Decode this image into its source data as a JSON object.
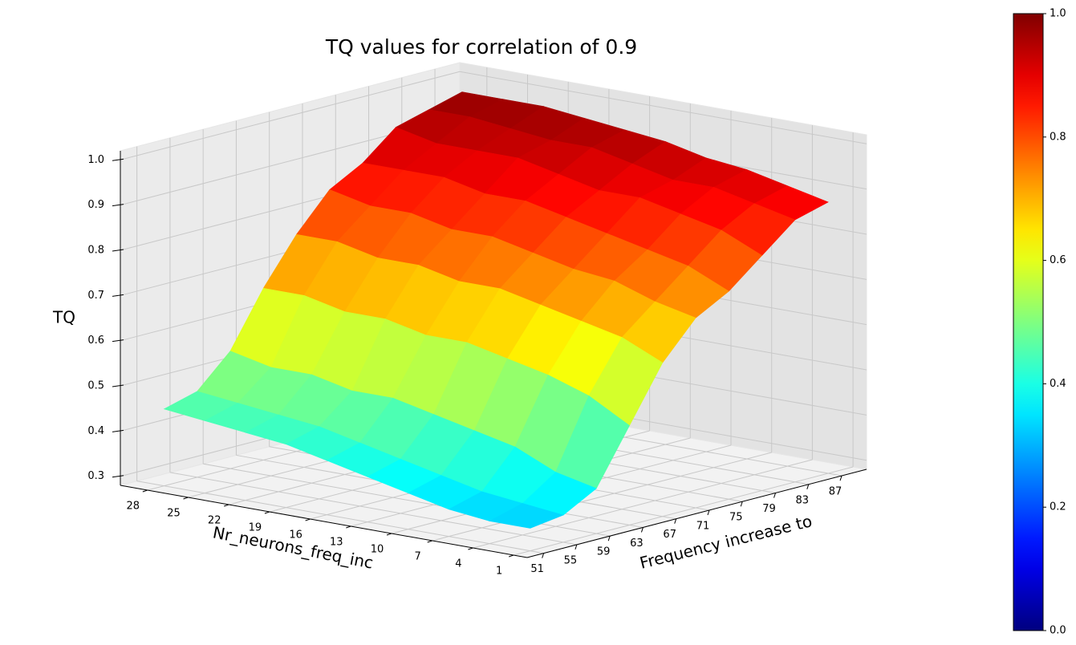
{
  "chart_data": {
    "type": "surface",
    "title": "TQ values for correlation of 0.9",
    "xlabel": "Frequency increase to",
    "ylabel": "Nr_neurons_freq_inc",
    "zlabel": "TQ",
    "x": [
      51,
      55,
      59,
      63,
      67,
      71,
      75,
      79,
      83,
      87
    ],
    "y": [
      1,
      4,
      7,
      10,
      13,
      16,
      19,
      22,
      25,
      28
    ],
    "z": [
      [
        0.33,
        0.34,
        0.38,
        0.5,
        0.62,
        0.7,
        0.74,
        0.8,
        0.86,
        0.88
      ],
      [
        0.33,
        0.35,
        0.4,
        0.55,
        0.66,
        0.72,
        0.78,
        0.84,
        0.88,
        0.9
      ],
      [
        0.34,
        0.36,
        0.44,
        0.58,
        0.68,
        0.75,
        0.8,
        0.86,
        0.9,
        0.92
      ],
      [
        0.36,
        0.38,
        0.46,
        0.6,
        0.7,
        0.76,
        0.82,
        0.88,
        0.9,
        0.93
      ],
      [
        0.38,
        0.4,
        0.48,
        0.62,
        0.72,
        0.78,
        0.84,
        0.88,
        0.92,
        0.95
      ],
      [
        0.4,
        0.42,
        0.5,
        0.62,
        0.72,
        0.8,
        0.86,
        0.9,
        0.94,
        0.96
      ],
      [
        0.42,
        0.44,
        0.5,
        0.64,
        0.74,
        0.8,
        0.86,
        0.92,
        0.94,
        0.97
      ],
      [
        0.43,
        0.45,
        0.52,
        0.64,
        0.74,
        0.82,
        0.88,
        0.92,
        0.95,
        0.98
      ],
      [
        0.44,
        0.46,
        0.52,
        0.66,
        0.76,
        0.82,
        0.88,
        0.92,
        0.96,
        0.98
      ],
      [
        0.45,
        0.47,
        0.54,
        0.66,
        0.76,
        0.84,
        0.88,
        0.94,
        0.96,
        0.98
      ]
    ],
    "xlim": [
      49,
      90
    ],
    "ylim": [
      0,
      30
    ],
    "zlim": [
      0.28,
      1.02
    ],
    "xticks": [
      51,
      55,
      59,
      63,
      67,
      71,
      75,
      79,
      83,
      87
    ],
    "yticks": [
      28,
      25,
      22,
      19,
      16,
      13,
      10,
      7,
      4,
      1
    ],
    "zticks": [
      0.3,
      0.4,
      0.5,
      0.6,
      0.7,
      0.8,
      0.9,
      {
        "value": 1.0,
        "label": "1.0"
      }
    ],
    "colormap": "jet",
    "clim": [
      0,
      1
    ],
    "cticks": [
      {
        "value": 0,
        "label": "0.0"
      },
      0.2,
      0.4,
      0.6,
      0.8,
      {
        "value": 1.0,
        "label": "1.0"
      }
    ],
    "grid": true
  }
}
